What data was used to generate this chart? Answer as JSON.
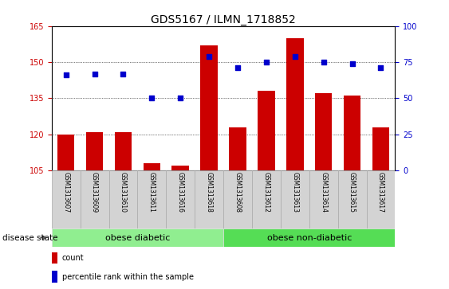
{
  "title": "GDS5167 / ILMN_1718852",
  "samples": [
    "GSM1313607",
    "GSM1313609",
    "GSM1313610",
    "GSM1313611",
    "GSM1313616",
    "GSM1313618",
    "GSM1313608",
    "GSM1313612",
    "GSM1313613",
    "GSM1313614",
    "GSM1313615",
    "GSM1313617"
  ],
  "counts": [
    120,
    121,
    121,
    108,
    107,
    157,
    123,
    138,
    160,
    137,
    136,
    123
  ],
  "percentiles": [
    66,
    67,
    67,
    50,
    50,
    79,
    71,
    75,
    79,
    75,
    74,
    71
  ],
  "ylim_left": [
    105,
    165
  ],
  "ylim_right": [
    0,
    100
  ],
  "yticks_left": [
    105,
    120,
    135,
    150,
    165
  ],
  "yticks_right": [
    0,
    25,
    50,
    75,
    100
  ],
  "bar_color": "#cc0000",
  "dot_color": "#0000cc",
  "group1_label": "obese diabetic",
  "group2_label": "obese non-diabetic",
  "group1_color": "#90ee90",
  "group2_color": "#55dd55",
  "disease_state_label": "disease state",
  "legend_count_label": "count",
  "legend_percentile_label": "percentile rank within the sample",
  "xlabel_area_color": "#d3d3d3",
  "title_fontsize": 10,
  "tick_fontsize": 7,
  "sample_fontsize": 5.5,
  "group_fontsize": 8,
  "legend_fontsize": 7,
  "ds_fontsize": 7.5
}
